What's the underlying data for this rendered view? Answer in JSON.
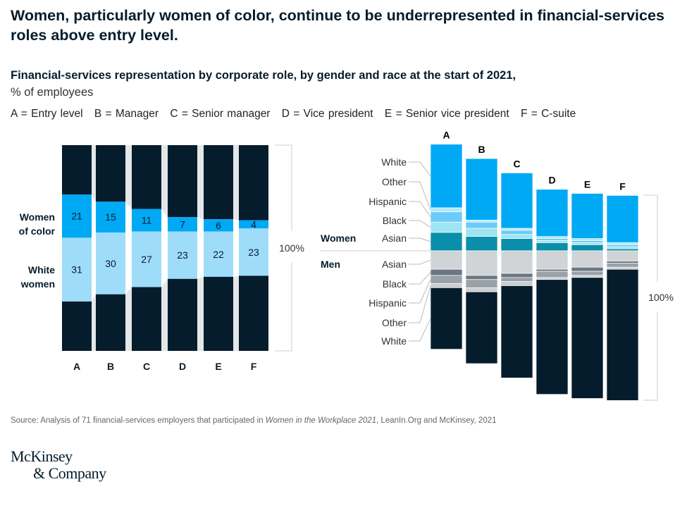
{
  "header": {
    "title": "Women, particularly women of color, continue to be underrepresented in financial-services roles above entry level.",
    "subtitle": "Financial-services representation by corporate role, by gender and race at the start of 2021,",
    "unit": "% of employees",
    "legend": [
      "A = Entry level",
      "B = Manager",
      "C = Senior manager",
      "D = Vice president",
      "E = Senior vice president",
      "F = C-suite"
    ]
  },
  "chart_data": [
    {
      "type": "bar",
      "stacked": true,
      "categories": [
        "A",
        "B",
        "C",
        "D",
        "E",
        "F"
      ],
      "series": [
        {
          "name": "Women of color",
          "label_lines": [
            "Women",
            "of color"
          ],
          "values": [
            21,
            15,
            11,
            7,
            6,
            4
          ],
          "color": "#00a9f4"
        },
        {
          "name": "White women",
          "label_lines": [
            "White",
            "women"
          ],
          "values": [
            31,
            30,
            27,
            23,
            22,
            23
          ],
          "color": "#9fdcfa"
        }
      ],
      "rest_color": "#051c2c",
      "total_label": "100%",
      "ylim": [
        0,
        100
      ]
    },
    {
      "type": "bar",
      "stacked": true,
      "categories": [
        "A",
        "B",
        "C",
        "D",
        "E",
        "F"
      ],
      "group_labels": {
        "women": "Women",
        "men": "Men"
      },
      "women_series": [
        {
          "name": "White",
          "values": [
            31,
            30,
            27,
            23,
            22,
            23
          ],
          "color": "#00a9f4"
        },
        {
          "name": "Other",
          "values": [
            2,
            1,
            1,
            1,
            1,
            1
          ],
          "color": "#b3e8fc"
        },
        {
          "name": "Hispanic",
          "values": [
            5,
            3,
            2,
            1,
            1,
            1
          ],
          "color": "#6ccbfa"
        },
        {
          "name": "Black",
          "values": [
            5,
            4,
            2,
            1,
            1,
            1
          ],
          "color": "#9ee5f1"
        },
        {
          "name": "Asian",
          "values": [
            9,
            7,
            6,
            4,
            3,
            1
          ],
          "color": "#0a8faa"
        }
      ],
      "men_series": [
        {
          "name": "Asian",
          "values": [
            9,
            12,
            11,
            9,
            8,
            5
          ],
          "color": "#d1d4d7"
        },
        {
          "name": "Black",
          "values": [
            3,
            2,
            2,
            1,
            2,
            1
          ],
          "color": "#6a7681"
        },
        {
          "name": "Hispanic",
          "values": [
            4,
            4,
            2,
            3,
            2,
            2
          ],
          "color": "#9aa2a9"
        },
        {
          "name": "Other",
          "values": [
            2,
            2,
            2,
            1,
            1,
            1
          ],
          "color": "#c9ced2"
        },
        {
          "name": "White",
          "values": [
            30,
            35,
            45,
            56,
            59,
            64
          ],
          "color": "#051c2c"
        }
      ],
      "total_label": "100%",
      "ylim": [
        0,
        100
      ]
    }
  ],
  "footer": {
    "source_prefix": "Source: Analysis of 71 financial-services employers that participated in ",
    "source_italic": "Women in the Workplace 2021",
    "source_suffix": ", LeanIn.Org and McKinsey, 2021",
    "logo_line1": "McKinsey",
    "logo_line2": "& Company"
  }
}
